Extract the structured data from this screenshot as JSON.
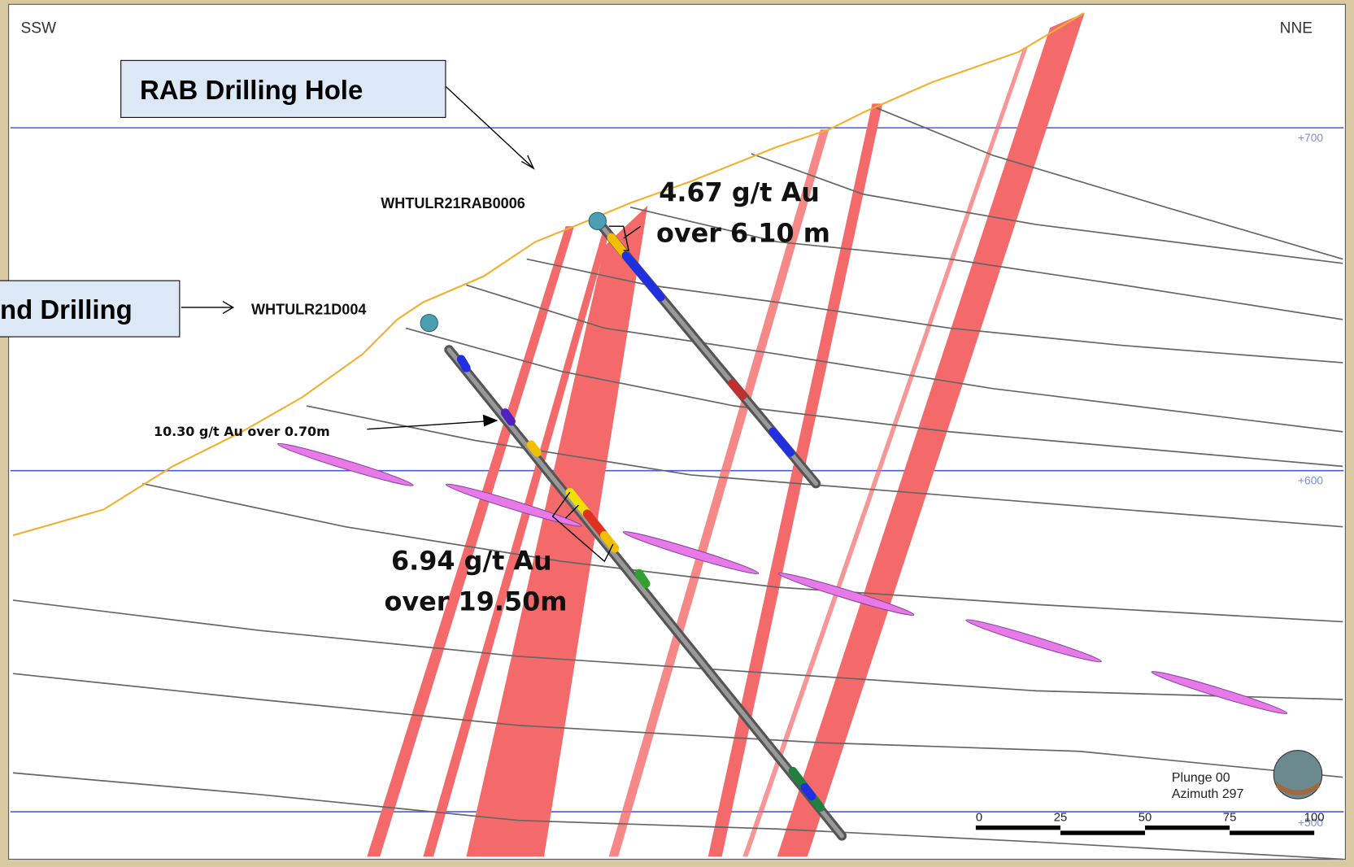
{
  "orientation": {
    "left": "SSW",
    "right": "NNE"
  },
  "callouts": {
    "rab": "RAB Drilling Hole",
    "diamond": "nd Drilling"
  },
  "holes": [
    "WHTULR21RAB0006",
    "WHTULR21D004"
  ],
  "intercepts": {
    "rab": [
      "4.67 g/t Au",
      "over 6.10 m"
    ],
    "upper": "10.30 g/t Au over 0.70m",
    "main": [
      "6.94 g/t Au",
      "over 19.50m"
    ]
  },
  "elevations": [
    "+700",
    "+600",
    "+500"
  ],
  "view": {
    "plunge": "Plunge 00",
    "azimuth": "Azimuth 297"
  },
  "scale_bar": [
    0,
    25,
    50,
    75,
    100
  ]
}
